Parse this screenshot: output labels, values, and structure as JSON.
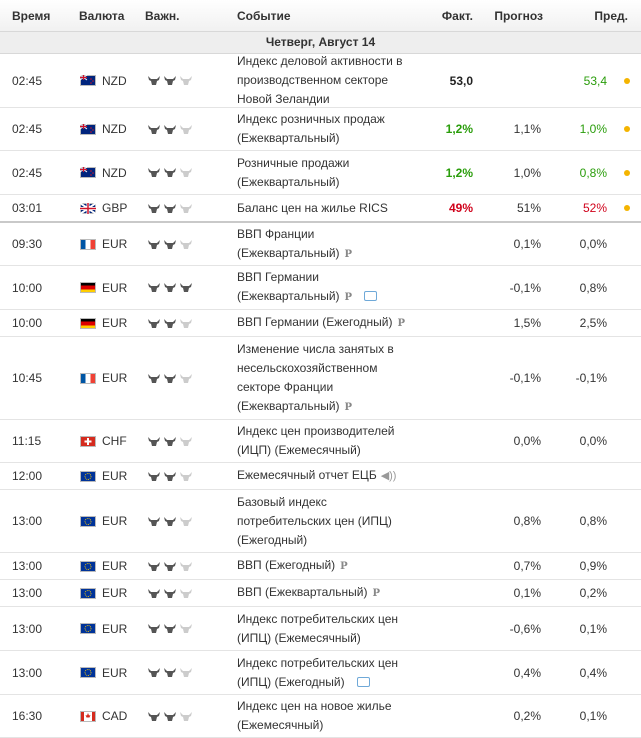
{
  "header": {
    "time": "Время",
    "currency": "Валюта",
    "importance": "Важн.",
    "event": "Событие",
    "actual": "Факт.",
    "forecast": "Прогноз",
    "previous": "Пред."
  },
  "day_label": "Четверг, Август 14",
  "rows": [
    {
      "time": "02:45",
      "currency": "NZD",
      "flag": "nz",
      "importance": 2,
      "event": "Индекс деловой активности в производственном секторе Новой Зеландии",
      "actual": "53,0",
      "actual_color": "#222222",
      "forecast": "",
      "previous": "53,4",
      "previous_color": "#2a9d0b",
      "dot": true
    },
    {
      "time": "02:45",
      "currency": "NZD",
      "flag": "nz",
      "importance": 2,
      "event": "Индекс розничных продаж (Ежеквартальный)",
      "actual": "1,2%",
      "actual_color": "#2a9d0b",
      "forecast": "1,1%",
      "previous": "1,0%",
      "previous_color": "#2a9d0b",
      "dot": true
    },
    {
      "time": "02:45",
      "currency": "NZD",
      "flag": "nz",
      "importance": 2,
      "event": "Розничные продажи (Ежеквартальный)",
      "actual": "1,2%",
      "actual_color": "#2a9d0b",
      "forecast": "1,0%",
      "previous": "0,8%",
      "previous_color": "#2a9d0b",
      "dot": true
    },
    {
      "time": "03:01",
      "currency": "GBP",
      "flag": "gb",
      "importance": 2,
      "event": "Баланс цен на жилье RICS",
      "actual": "49%",
      "actual_color": "#d0021b",
      "forecast": "51%",
      "previous": "52%",
      "previous_color": "#d0021b",
      "dot": true
    },
    {
      "time": "09:30",
      "currency": "EUR",
      "flag": "fr",
      "importance": 2,
      "event": "ВВП Франции (Ежеквартальный)",
      "badge": "P",
      "actual": "",
      "forecast": "0,1%",
      "previous": "0,0%",
      "previous_color": "#333333"
    },
    {
      "time": "10:00",
      "currency": "EUR",
      "flag": "de",
      "importance": 3,
      "event": "ВВП Германии (Ежеквартальный)",
      "badge": "P",
      "chat": true,
      "actual": "",
      "forecast": "-0,1%",
      "previous": "0,8%",
      "previous_color": "#333333"
    },
    {
      "time": "10:00",
      "currency": "EUR",
      "flag": "de",
      "importance": 2,
      "event": "ВВП Германии (Ежегодный)",
      "badge": "P",
      "actual": "",
      "forecast": "1,5%",
      "previous": "2,5%",
      "previous_color": "#333333"
    },
    {
      "time": "10:45",
      "currency": "EUR",
      "flag": "fr",
      "importance": 2,
      "event": "Изменение числа занятых в несельскохозяйственном секторе Франции (Ежеквартальный)",
      "badge": "P",
      "actual": "",
      "forecast": "-0,1%",
      "previous": "-0,1%",
      "previous_color": "#333333"
    },
    {
      "time": "11:15",
      "currency": "CHF",
      "flag": "ch",
      "importance": 2,
      "event": "Индекс цен производителей (ИЦП) (Ежемесячный)",
      "actual": "",
      "forecast": "0,0%",
      "previous": "0,0%",
      "previous_color": "#333333"
    },
    {
      "time": "12:00",
      "currency": "EUR",
      "flag": "eu",
      "importance": 2,
      "event": "Ежемесячный отчет ЕЦБ",
      "speaker": true,
      "actual": "",
      "forecast": "",
      "previous": ""
    },
    {
      "time": "13:00",
      "currency": "EUR",
      "flag": "eu",
      "importance": 2,
      "event": "Базовый индекс потребительских цен (ИПЦ) (Ежегодный)",
      "actual": "",
      "forecast": "0,8%",
      "previous": "0,8%",
      "previous_color": "#333333"
    },
    {
      "time": "13:00",
      "currency": "EUR",
      "flag": "eu",
      "importance": 2,
      "event": "ВВП (Ежегодный)",
      "badge": "P",
      "actual": "",
      "forecast": "0,7%",
      "previous": "0,9%",
      "previous_color": "#333333"
    },
    {
      "time": "13:00",
      "currency": "EUR",
      "flag": "eu",
      "importance": 2,
      "event": "ВВП (Ежеквартальный)",
      "badge": "P",
      "actual": "",
      "forecast": "0,1%",
      "previous": "0,2%",
      "previous_color": "#333333"
    },
    {
      "time": "13:00",
      "currency": "EUR",
      "flag": "eu",
      "importance": 2,
      "event": "Индекс потребительских цен (ИПЦ) (Ежемесячный)",
      "actual": "",
      "forecast": "-0,6%",
      "previous": "0,1%",
      "previous_color": "#333333"
    },
    {
      "time": "13:00",
      "currency": "EUR",
      "flag": "eu",
      "importance": 2,
      "event": "Индекс потребительских цен (ИПЦ) (Ежегодный)",
      "chat": true,
      "actual": "",
      "forecast": "0,4%",
      "previous": "0,4%",
      "previous_color": "#333333"
    },
    {
      "time": "16:30",
      "currency": "CAD",
      "flag": "ca",
      "importance": 2,
      "event": "Индекс цен на новое жилье (Ежемесячный)",
      "actual": "",
      "forecast": "0,2%",
      "previous": "0,1%",
      "previous_color": "#333333"
    }
  ]
}
